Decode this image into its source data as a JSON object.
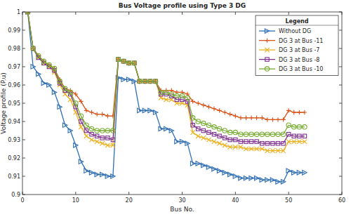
{
  "chart_data": {
    "type": "line",
    "title": "Bus Voltage profile using Type 3 DG",
    "x_label": "Bus No.",
    "y_label": "Voltage profile (P.u)",
    "legend_title": "Legend",
    "legend": "upper right",
    "grid": false,
    "xlim": [
      0,
      60
    ],
    "xticks": [
      0,
      10,
      20,
      30,
      40,
      50,
      60
    ],
    "ylim": [
      0.9,
      1
    ],
    "yticks": [
      0.9,
      0.91,
      0.92,
      0.93,
      0.94,
      0.95,
      0.96,
      0.97,
      0.98,
      0.99,
      1
    ],
    "x": [
      1,
      2,
      3,
      4,
      5,
      6,
      7,
      8,
      9,
      10,
      11,
      12,
      13,
      14,
      15,
      16,
      17,
      18,
      19,
      20,
      21,
      22,
      23,
      24,
      25,
      26,
      27,
      28,
      29,
      30,
      31,
      32,
      33,
      34,
      35,
      36,
      37,
      38,
      39,
      40,
      41,
      42,
      43,
      44,
      45,
      46,
      47,
      48,
      49,
      50,
      51,
      52,
      53
    ],
    "series": [
      {
        "name": "Without DG",
        "color": "#2f6fb3",
        "marker": "triangle-right",
        "line_style": "solid",
        "values": [
          1.0,
          0.97,
          0.966,
          0.961,
          0.96,
          0.956,
          0.948,
          0.938,
          0.935,
          0.927,
          0.918,
          0.913,
          0.912,
          0.911,
          0.911,
          0.91,
          0.91,
          0.964,
          0.963,
          0.963,
          0.962,
          0.946,
          0.946,
          0.946,
          0.945,
          0.936,
          0.936,
          0.935,
          0.929,
          0.929,
          0.928,
          0.917,
          0.917,
          0.916,
          0.915,
          0.914,
          0.913,
          0.912,
          0.911,
          0.91,
          0.909,
          0.909,
          0.909,
          0.909,
          0.908,
          0.908,
          0.908,
          0.907,
          0.907,
          0.913,
          0.912,
          0.912,
          0.912
        ]
      },
      {
        "name": "DG 3 at Bus -11",
        "color": "#d95319",
        "marker": "plus",
        "line_style": "solid",
        "values": [
          1.0,
          0.98,
          0.976,
          0.973,
          0.971,
          0.969,
          0.963,
          0.958,
          0.957,
          0.955,
          0.951,
          0.946,
          0.945,
          0.944,
          0.944,
          0.943,
          0.943,
          0.974,
          0.973,
          0.972,
          0.972,
          0.962,
          0.962,
          0.962,
          0.962,
          0.957,
          0.957,
          0.957,
          0.956,
          0.956,
          0.955,
          0.951,
          0.95,
          0.949,
          0.948,
          0.947,
          0.946,
          0.945,
          0.944,
          0.943,
          0.942,
          0.942,
          0.942,
          0.942,
          0.942,
          0.941,
          0.941,
          0.941,
          0.941,
          0.946,
          0.945,
          0.945,
          0.945
        ]
      },
      {
        "name": "DG 3 at Bus -7",
        "color": "#edb120",
        "marker": "x",
        "line_style": "solid",
        "values": [
          1.0,
          0.98,
          0.975,
          0.972,
          0.97,
          0.967,
          0.96,
          0.955,
          0.952,
          0.945,
          0.937,
          0.932,
          0.93,
          0.929,
          0.928,
          0.927,
          0.927,
          0.974,
          0.973,
          0.972,
          0.972,
          0.962,
          0.962,
          0.962,
          0.962,
          0.953,
          0.952,
          0.952,
          0.95,
          0.95,
          0.949,
          0.934,
          0.932,
          0.931,
          0.93,
          0.929,
          0.928,
          0.927,
          0.926,
          0.926,
          0.926,
          0.925,
          0.925,
          0.925,
          0.925,
          0.924,
          0.924,
          0.924,
          0.924,
          0.929,
          0.929,
          0.929,
          0.929
        ]
      },
      {
        "name": "DG 3 at Bus -8",
        "color": "#7e2f8e",
        "marker": "square",
        "line_style": "solid",
        "values": [
          1.0,
          0.98,
          0.975,
          0.972,
          0.97,
          0.968,
          0.961,
          0.957,
          0.955,
          0.948,
          0.94,
          0.935,
          0.933,
          0.932,
          0.931,
          0.931,
          0.93,
          0.974,
          0.973,
          0.972,
          0.972,
          0.962,
          0.962,
          0.962,
          0.962,
          0.955,
          0.955,
          0.954,
          0.952,
          0.952,
          0.951,
          0.938,
          0.936,
          0.935,
          0.934,
          0.933,
          0.932,
          0.931,
          0.93,
          0.93,
          0.929,
          0.929,
          0.929,
          0.929,
          0.928,
          0.928,
          0.928,
          0.928,
          0.928,
          0.933,
          0.932,
          0.932,
          0.932
        ]
      },
      {
        "name": "DG 3 at Bus -10",
        "color": "#77ac30",
        "marker": "circle",
        "line_style": "solid",
        "values": [
          1.0,
          0.98,
          0.976,
          0.973,
          0.971,
          0.969,
          0.962,
          0.958,
          0.956,
          0.95,
          0.943,
          0.938,
          0.936,
          0.935,
          0.935,
          0.935,
          0.935,
          0.974,
          0.973,
          0.972,
          0.972,
          0.962,
          0.962,
          0.962,
          0.962,
          0.956,
          0.956,
          0.955,
          0.954,
          0.954,
          0.953,
          0.942,
          0.94,
          0.939,
          0.938,
          0.937,
          0.936,
          0.935,
          0.934,
          0.934,
          0.933,
          0.933,
          0.933,
          0.933,
          0.933,
          0.933,
          0.933,
          0.933,
          0.933,
          0.938,
          0.937,
          0.937,
          0.937
        ]
      }
    ]
  }
}
